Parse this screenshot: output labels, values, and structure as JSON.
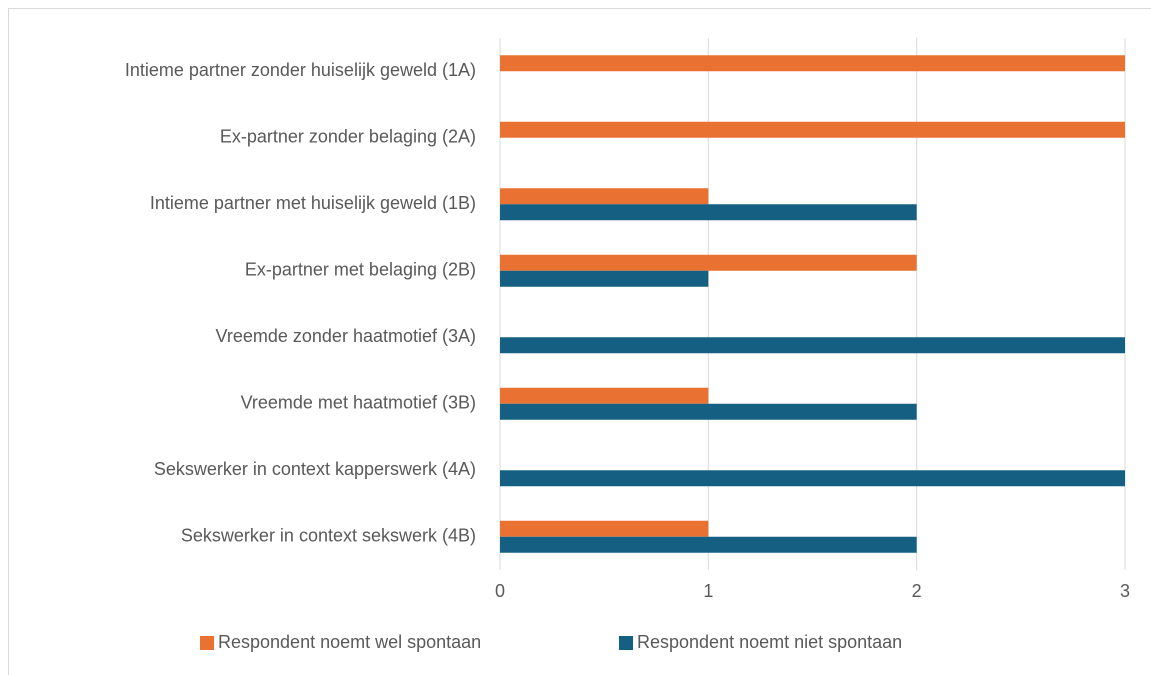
{
  "chart_data": {
    "type": "bar",
    "orientation": "horizontal",
    "categories": [
      "Intieme partner zonder huiselijk geweld (1A)",
      "Ex-partner zonder belaging (2A)",
      "Intieme partner met huiselijk geweld (1B)",
      "Ex-partner met belaging (2B)",
      "Vreemde zonder haatmotief (3A)",
      "Vreemde met haatmotief (3B)",
      "Sekswerker in context kapperswerk (4A)",
      "Sekswerker in context sekswerk (4B)"
    ],
    "series": [
      {
        "name": "Respondent noemt wel spontaan",
        "color": "#E97132",
        "values": [
          3,
          3,
          1,
          2,
          0,
          1,
          0,
          1
        ]
      },
      {
        "name": "Respondent noemt niet spontaan",
        "color": "#156082",
        "values": [
          0,
          0,
          2,
          1,
          3,
          2,
          3,
          2
        ]
      }
    ],
    "xlim": [
      0,
      3
    ],
    "xticks": [
      0,
      1,
      2,
      3
    ],
    "grid": true,
    "legend": "bottom"
  }
}
